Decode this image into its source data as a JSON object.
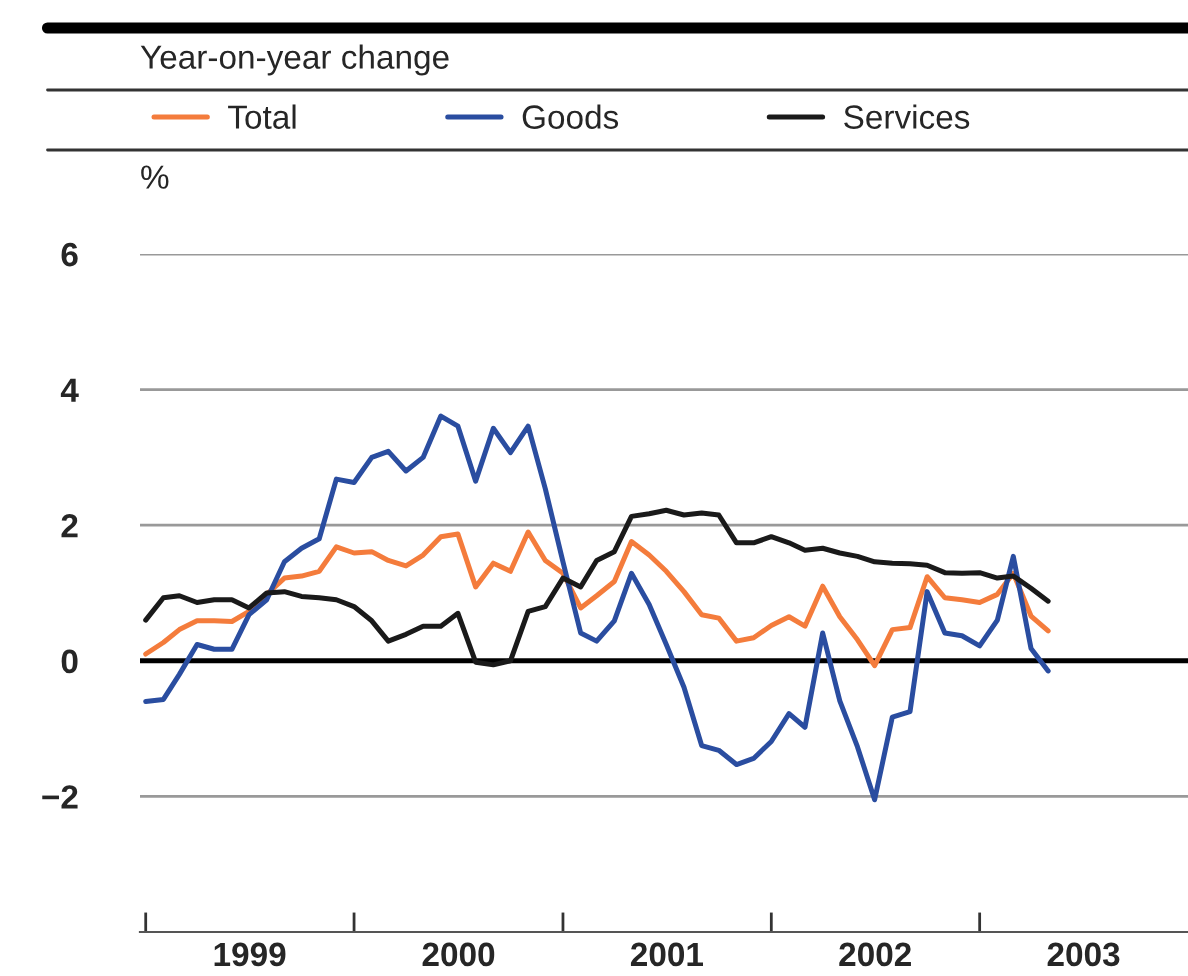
{
  "chart_data": {
    "type": "line",
    "subtitle": "Year-on-year change",
    "ylabel": "%",
    "x": [
      "1999-01",
      "1999-02",
      "1999-03",
      "1999-04",
      "1999-05",
      "1999-06",
      "1999-07",
      "1999-08",
      "1999-09",
      "1999-10",
      "1999-11",
      "1999-12",
      "2000-01",
      "2000-02",
      "2000-03",
      "2000-04",
      "2000-05",
      "2000-06",
      "2000-07",
      "2000-08",
      "2000-09",
      "2000-10",
      "2000-11",
      "2000-12",
      "2001-01",
      "2001-02",
      "2001-03",
      "2001-04",
      "2001-05",
      "2001-06",
      "2001-07",
      "2001-08",
      "2001-09",
      "2001-10",
      "2001-11",
      "2001-12",
      "2002-01",
      "2002-02",
      "2002-03",
      "2002-04",
      "2002-05",
      "2002-06",
      "2002-07",
      "2002-08",
      "2002-09",
      "2002-10",
      "2002-11",
      "2002-12",
      "2003-01",
      "2003-02",
      "2003-03",
      "2003-04",
      "2003-05"
    ],
    "series": [
      {
        "name": "Total",
        "color": "#f47c3c",
        "values": [
          0.1,
          0.27,
          0.46,
          0.59,
          0.59,
          0.58,
          0.73,
          0.98,
          1.22,
          1.25,
          1.32,
          1.68,
          1.59,
          1.61,
          1.48,
          1.4,
          1.56,
          1.83,
          1.87,
          1.09,
          1.44,
          1.32,
          1.9,
          1.48,
          1.29,
          0.78,
          0.96,
          1.17,
          1.76,
          1.56,
          1.32,
          1.02,
          0.68,
          0.63,
          0.29,
          0.34,
          0.52,
          0.65,
          0.51,
          1.1,
          0.65,
          0.31,
          -0.07,
          0.46,
          0.49,
          1.24,
          0.93,
          0.9,
          0.86,
          0.98,
          1.29,
          0.66,
          0.44
        ]
      },
      {
        "name": "Goods",
        "color": "#2a4da0",
        "values": [
          -0.6,
          -0.57,
          -0.2,
          0.24,
          0.17,
          0.17,
          0.68,
          0.9,
          1.46,
          1.66,
          1.8,
          2.68,
          2.63,
          3.0,
          3.09,
          2.8,
          3.0,
          3.61,
          3.46,
          2.65,
          3.43,
          3.07,
          3.46,
          2.54,
          1.46,
          0.41,
          0.29,
          0.59,
          1.29,
          0.83,
          0.24,
          -0.39,
          -1.25,
          -1.32,
          -1.53,
          -1.44,
          -1.19,
          -0.78,
          -0.98,
          0.41,
          -0.59,
          -1.27,
          -2.05,
          -0.83,
          -0.75,
          1.02,
          0.41,
          0.37,
          0.22,
          0.6,
          1.54,
          0.18,
          -0.15
        ]
      },
      {
        "name": "Services",
        "color": "#1a1a1a",
        "values": [
          0.6,
          0.93,
          0.96,
          0.86,
          0.9,
          0.9,
          0.78,
          1.0,
          1.02,
          0.95,
          0.93,
          0.9,
          0.8,
          0.59,
          0.29,
          0.39,
          0.51,
          0.51,
          0.7,
          -0.02,
          -0.06,
          0.0,
          0.73,
          0.8,
          1.22,
          1.09,
          1.48,
          1.61,
          2.13,
          2.17,
          2.22,
          2.15,
          2.18,
          2.15,
          1.74,
          1.74,
          1.83,
          1.74,
          1.63,
          1.66,
          1.59,
          1.54,
          1.46,
          1.44,
          1.43,
          1.41,
          1.3,
          1.29,
          1.3,
          1.22,
          1.25,
          1.07,
          0.88
        ]
      }
    ],
    "xlim": [
      "1998-12-22",
      "2004-01-01"
    ],
    "xticks": [
      {
        "value": "1999-01-01",
        "label": null
      },
      {
        "value": "1999-07-02",
        "label": "1999"
      },
      {
        "value": "2000-01-01",
        "label": null
      },
      {
        "value": "2000-07-02",
        "label": "2000"
      },
      {
        "value": "2001-01-01",
        "label": null
      },
      {
        "value": "2001-07-02",
        "label": "2001"
      },
      {
        "value": "2002-01-01",
        "label": null
      },
      {
        "value": "2002-07-02",
        "label": "2002"
      },
      {
        "value": "2003-01-01",
        "label": null
      },
      {
        "value": "2003-07-02",
        "label": "2003"
      }
    ],
    "ylim": [
      -4,
      6
    ],
    "yticks": [
      {
        "value": -2,
        "label": "−2"
      },
      0,
      2,
      4,
      6
    ],
    "ref_lines": [
      {
        "axis": "y",
        "value": 0,
        "color": "#000000"
      }
    ],
    "grid": "y",
    "legend": "top",
    "line_style": "solid",
    "marker": "none"
  }
}
